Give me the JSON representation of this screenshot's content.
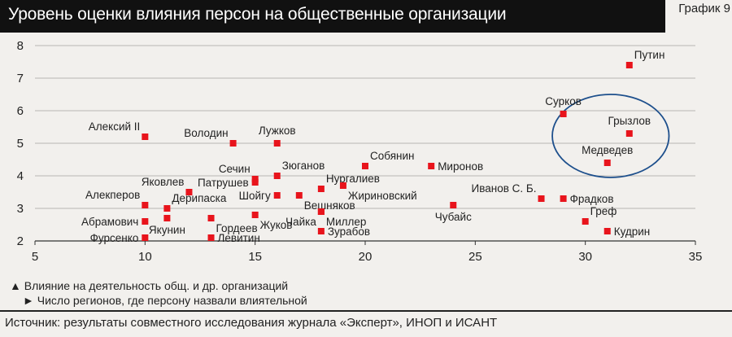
{
  "header": {
    "title": "Уровень оценки влияния персон на общественные организации",
    "chart_number": "График 9"
  },
  "legend": {
    "x_axis_caption": "▲ Влияние на деятельность общ. и др. организаций",
    "y_axis_caption": "► Число регионов, где персону назвали влиятельной"
  },
  "footer": {
    "source": "Источник: результаты совместного исследования журнала «Эксперт», ИНОП и ИСАНТ"
  },
  "colors": {
    "marker": "#e8141c",
    "ellipse": "#1d4f8c",
    "grid": "#b8b6b3",
    "header_bg": "#111111"
  },
  "chart_data": {
    "type": "scatter",
    "xlim": [
      5,
      35
    ],
    "ylim": [
      2,
      8
    ],
    "xticks": [
      5,
      10,
      15,
      20,
      25,
      30,
      35
    ],
    "yticks": [
      2,
      3,
      4,
      5,
      6,
      7,
      8
    ],
    "grid": "horizontal",
    "points": [
      {
        "name": "Путин",
        "x": 32,
        "y": 7.4,
        "anchor": "ne"
      },
      {
        "name": "Сурков",
        "x": 29,
        "y": 5.9,
        "anchor": "n"
      },
      {
        "name": "Грызлов",
        "x": 32,
        "y": 5.3,
        "anchor": "n"
      },
      {
        "name": "Медведев",
        "x": 31,
        "y": 4.4,
        "anchor": "n"
      },
      {
        "name": "Миронов",
        "x": 23,
        "y": 4.3,
        "anchor": "e"
      },
      {
        "name": "Иванов С. Б.",
        "x": 28,
        "y": 3.3,
        "anchor": "nw"
      },
      {
        "name": "Фрадков",
        "x": 29,
        "y": 3.3,
        "anchor": "e"
      },
      {
        "name": "Греф",
        "x": 30,
        "y": 2.6,
        "anchor": "ne"
      },
      {
        "name": "Кудрин",
        "x": 31,
        "y": 2.3,
        "anchor": "e"
      },
      {
        "name": "Чубайс",
        "x": 24,
        "y": 3.1,
        "anchor": "s"
      },
      {
        "name": "Собянин",
        "x": 20,
        "y": 4.3,
        "anchor": "ne"
      },
      {
        "name": "Нургалиев",
        "x": 18,
        "y": 3.6,
        "anchor": "ne"
      },
      {
        "name": "Жириновский",
        "x": 19,
        "y": 3.7,
        "anchor": "se"
      },
      {
        "name": "Вешняков",
        "x": 17,
        "y": 3.4,
        "anchor": "se"
      },
      {
        "name": "Миллер",
        "x": 18,
        "y": 2.9,
        "anchor": "se"
      },
      {
        "name": "Чайка",
        "x": 18,
        "y": 2.9,
        "anchor": "sw"
      },
      {
        "name": "Зурабов",
        "x": 18,
        "y": 2.3,
        "anchor": "e"
      },
      {
        "name": "Лужков",
        "x": 16,
        "y": 5.0,
        "anchor": "n"
      },
      {
        "name": "Володин",
        "x": 14,
        "y": 5.0,
        "anchor": "nw"
      },
      {
        "name": "Зюганов",
        "x": 16,
        "y": 4.0,
        "anchor": "ne"
      },
      {
        "name": "Сечин",
        "x": 15,
        "y": 3.9,
        "anchor": "nw"
      },
      {
        "name": "Патрушев",
        "x": 15,
        "y": 3.8,
        "anchor": "w"
      },
      {
        "name": "Шойгу",
        "x": 16,
        "y": 3.4,
        "anchor": "w"
      },
      {
        "name": "Жуков",
        "x": 15,
        "y": 2.8,
        "anchor": "se"
      },
      {
        "name": "Гордеев",
        "x": 13,
        "y": 2.7,
        "anchor": "se"
      },
      {
        "name": "Левитин",
        "x": 13,
        "y": 2.1,
        "anchor": "e"
      },
      {
        "name": "Яковлев",
        "x": 12,
        "y": 3.5,
        "anchor": "nw"
      },
      {
        "name": "Дерипаска",
        "x": 11,
        "y": 3.0,
        "anchor": "ne"
      },
      {
        "name": "Якунин",
        "x": 11,
        "y": 2.7,
        "anchor": "s"
      },
      {
        "name": "Алексий II",
        "x": 10,
        "y": 5.2,
        "anchor": "nw"
      },
      {
        "name": "Алекперов",
        "x": 10,
        "y": 3.1,
        "anchor": "nw"
      },
      {
        "name": "Абрамович",
        "x": 10,
        "y": 2.6,
        "anchor": "w"
      },
      {
        "name": "Фурсенко",
        "x": 10,
        "y": 2.1,
        "anchor": "w"
      }
    ]
  }
}
